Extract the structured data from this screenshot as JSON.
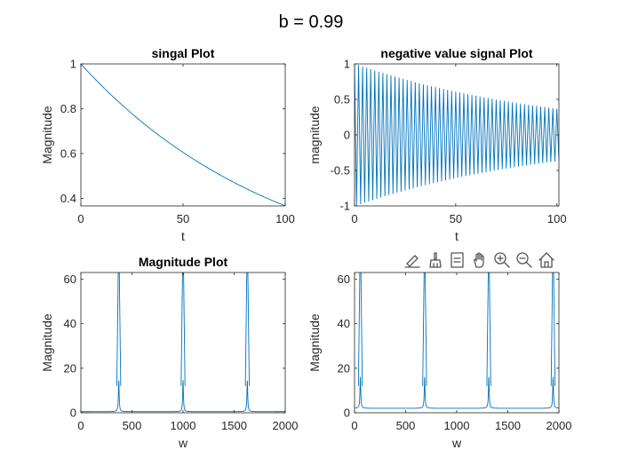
{
  "figure": {
    "suptitle": "b = 0.99",
    "toolbar_icons": [
      "edit-icon",
      "brush-icon",
      "data-tips-icon",
      "pan-icon",
      "zoom-in-icon",
      "zoom-out-icon",
      "home-icon"
    ]
  },
  "colors": {
    "series": "#0072BD",
    "axis": "#262626"
  },
  "chart_data": [
    {
      "type": "line",
      "title": "singal Plot",
      "xlabel": "t",
      "ylabel": "Magnitude",
      "xlim": [
        0,
        100
      ],
      "ylim": [
        0.366,
        1
      ],
      "xticks": [
        0,
        50,
        100
      ],
      "yticks": [
        0.4,
        0.6,
        0.8,
        1
      ],
      "ytick_labels": [
        "0.4",
        "0.6",
        "0.8",
        "1"
      ],
      "series": [
        {
          "formula": "0.99^t",
          "x_range": [
            0,
            100
          ],
          "x": [
            0,
            10,
            20,
            30,
            40,
            50,
            60,
            70,
            80,
            90,
            100
          ],
          "y": [
            1.0,
            0.904,
            0.818,
            0.74,
            0.669,
            0.605,
            0.547,
            0.495,
            0.448,
            0.405,
            0.366
          ]
        }
      ]
    },
    {
      "type": "line",
      "title": "negative value signal Plot",
      "xlabel": "t",
      "ylabel": "magnitude",
      "xlim": [
        0,
        101
      ],
      "ylim": [
        -1,
        1
      ],
      "xticks": [
        0,
        50,
        100
      ],
      "yticks": [
        -1,
        -0.5,
        0,
        0.5,
        1
      ],
      "ytick_labels": [
        "-1",
        "-0.5",
        "0",
        "0.5",
        "1"
      ],
      "series": [
        {
          "formula": "(-0.99)^t",
          "x_range": [
            0,
            101
          ],
          "envelope_x": [
            0,
            25,
            50,
            75,
            100
          ],
          "envelope_y": [
            1.0,
            0.778,
            0.605,
            0.471,
            0.366
          ]
        }
      ]
    },
    {
      "type": "line",
      "title": "Magnitude Plot",
      "xlabel": "w",
      "ylabel": "Magnitude",
      "xlim": [
        0,
        2000
      ],
      "ylim": [
        0,
        63
      ],
      "xticks": [
        0,
        500,
        1000,
        1500,
        2000
      ],
      "yticks": [
        0,
        20,
        40,
        60
      ],
      "ytick_labels": [
        "0",
        "20",
        "40",
        "60"
      ],
      "series": [
        {
          "peaks_x": [
            371,
            1000,
            1629
          ],
          "peak_height": 63,
          "shoulder_height": 14,
          "baseline": 0.5
        }
      ]
    },
    {
      "type": "line",
      "title": "",
      "xlabel": "w",
      "ylabel": "Magnitude",
      "xlim": [
        0,
        2000
      ],
      "ylim": [
        0,
        63
      ],
      "xticks": [
        0,
        500,
        1000,
        1500,
        2000
      ],
      "yticks": [
        0,
        20,
        40,
        60
      ],
      "ytick_labels": [
        "0",
        "20",
        "40",
        "60"
      ],
      "series": [
        {
          "peaks_x": [
            57,
            686,
            1314,
            1943
          ],
          "peak_height": 63,
          "shoulder_height": 14,
          "baseline": 2
        }
      ]
    }
  ]
}
